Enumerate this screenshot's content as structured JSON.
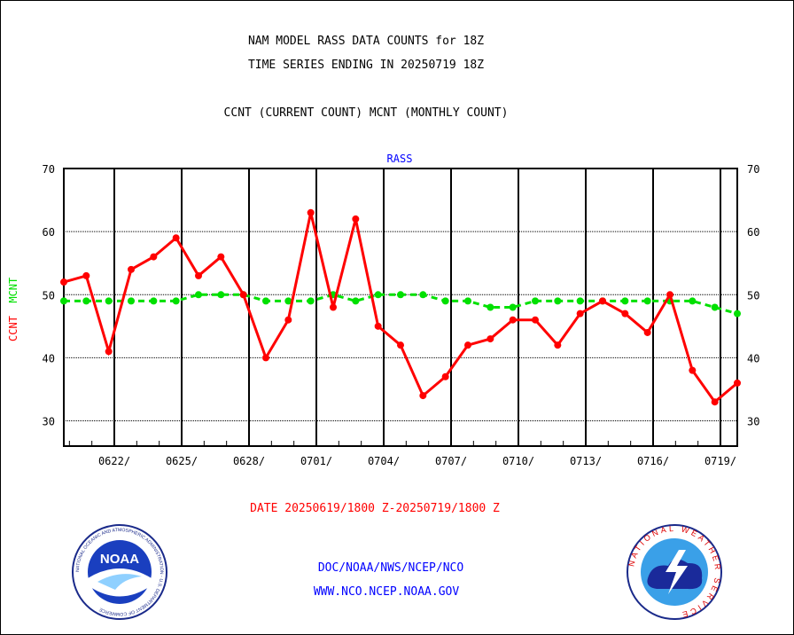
{
  "titles": {
    "line1": "NAM MODEL RASS DATA COUNTS for 18Z",
    "line2": "TIME SERIES ENDING IN 20250719 18Z",
    "line3": "CCNT (CURRENT COUNT) MCNT (MONTHLY COUNT)"
  },
  "footer": {
    "date_range": "DATE 20250619/1800 Z-20250719/1800 Z",
    "org": "DOC/NOAA/NWS/NCEP/NCO",
    "url": "WWW.NCO.NCEP.NOAA.GOV",
    "noaa_logo_text": "NOAA",
    "noaa_ring_text": "NATIONAL OCEANIC AND ATMOSPHERIC ADMINISTRATION - U.S. DEPARTMENT OF COMMERCE",
    "nws_ring_text": "NATIONAL WEATHER SERVICE"
  },
  "colors": {
    "ccnt": "#ff0000",
    "mcnt": "#00e000",
    "rass": "#0000ff",
    "footer_link": "#0000ff"
  },
  "chart_data": {
    "type": "line",
    "title": "RASS",
    "ylabel_series": [
      "CCNT",
      "MCNT"
    ],
    "ylim": [
      26,
      70
    ],
    "yticks": [
      30,
      40,
      50,
      60,
      70
    ],
    "xtick_labels": [
      "0622/",
      "0625/",
      "0628/",
      "0701/",
      "0704/",
      "0707/",
      "0710/",
      "0713/",
      "0716/",
      "0719/"
    ],
    "x_start": "20250619 18Z",
    "x_step_days": 1,
    "series": [
      {
        "name": "CCNT",
        "color": "#ff0000",
        "values": [
          52,
          53,
          41,
          54,
          56,
          59,
          53,
          56,
          50,
          40,
          46,
          63,
          48,
          62,
          45,
          42,
          34,
          37,
          42,
          43,
          46,
          46,
          42,
          47,
          49,
          47,
          44,
          50,
          38,
          33,
          36
        ]
      },
      {
        "name": "MCNT",
        "color": "#00e000",
        "values": [
          49,
          49,
          49,
          49,
          49,
          49,
          50,
          50,
          50,
          49,
          49,
          49,
          50,
          49,
          50,
          50,
          50,
          49,
          49,
          48,
          48,
          49,
          49,
          49,
          49,
          49,
          49,
          49,
          49,
          48,
          47
        ]
      }
    ]
  }
}
